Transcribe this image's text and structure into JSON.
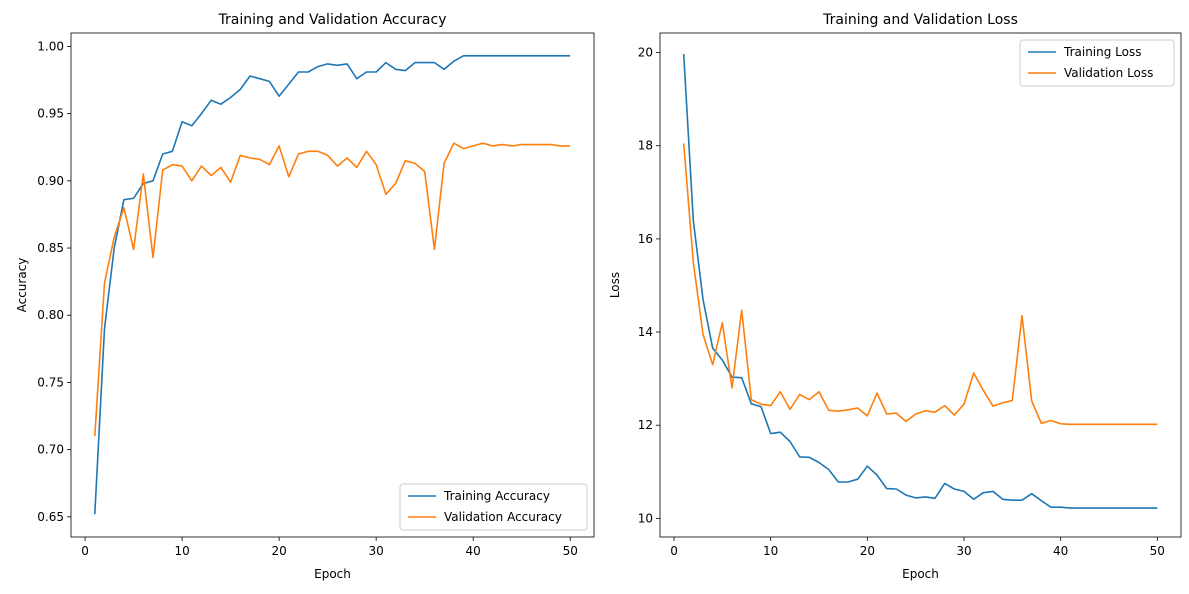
{
  "chart_data": [
    {
      "type": "line",
      "title": "Training and Validation Accuracy",
      "xlabel": "Epoch",
      "ylabel": "Accuracy",
      "xlim": [
        -1.45,
        52.45
      ],
      "ylim": [
        0.635,
        1.01
      ],
      "xticks": [
        0,
        10,
        20,
        30,
        40,
        50
      ],
      "yticks": [
        "0.65",
        "0.70",
        "0.75",
        "0.80",
        "0.85",
        "0.90",
        "0.95",
        "1.00"
      ],
      "legend": "lower right",
      "grid": false,
      "x": [
        1,
        2,
        3,
        4,
        5,
        6,
        7,
        8,
        9,
        10,
        11,
        12,
        13,
        14,
        15,
        16,
        17,
        18,
        19,
        20,
        21,
        22,
        23,
        24,
        25,
        26,
        27,
        28,
        29,
        30,
        31,
        32,
        33,
        34,
        35,
        36,
        37,
        38,
        39,
        40,
        41,
        42,
        43,
        44,
        45,
        46,
        47,
        48,
        49,
        50
      ],
      "series": [
        {
          "name": "Training Accuracy",
          "color": "#1f77b4",
          "values": [
            0.652,
            0.79,
            0.85,
            0.886,
            0.887,
            0.898,
            0.9,
            0.92,
            0.922,
            0.944,
            0.941,
            0.95,
            0.96,
            0.957,
            0.962,
            0.968,
            0.978,
            0.976,
            0.974,
            0.963,
            0.972,
            0.981,
            0.981,
            0.985,
            0.987,
            0.986,
            0.987,
            0.976,
            0.981,
            0.981,
            0.988,
            0.983,
            0.982,
            0.988,
            0.988,
            0.988,
            0.983,
            0.989,
            0.993,
            0.993,
            0.993,
            0.993,
            0.993,
            0.993,
            0.993,
            0.993,
            0.993,
            0.993,
            0.993,
            0.993
          ]
        },
        {
          "name": "Validation Accuracy",
          "color": "#ff7f0e",
          "values": [
            0.71,
            0.824,
            0.858,
            0.88,
            0.849,
            0.905,
            0.843,
            0.908,
            0.912,
            0.911,
            0.9,
            0.911,
            0.904,
            0.91,
            0.899,
            0.919,
            0.917,
            0.916,
            0.912,
            0.926,
            0.903,
            0.92,
            0.922,
            0.922,
            0.919,
            0.911,
            0.917,
            0.91,
            0.922,
            0.912,
            0.89,
            0.898,
            0.915,
            0.913,
            0.907,
            0.849,
            0.913,
            0.928,
            0.924,
            0.926,
            0.928,
            0.926,
            0.927,
            0.926,
            0.927,
            0.927,
            0.927,
            0.927,
            0.926,
            0.926
          ]
        }
      ]
    },
    {
      "type": "line",
      "title": "Training and Validation Loss",
      "xlabel": "Epoch",
      "ylabel": "Loss",
      "xlim": [
        -1.45,
        52.45
      ],
      "ylim": [
        9.6,
        20.42
      ],
      "xticks": [
        0,
        10,
        20,
        30,
        40,
        50
      ],
      "yticks": [
        "10",
        "12",
        "14",
        "16",
        "18",
        "20"
      ],
      "legend": "upper right",
      "grid": false,
      "x": [
        1,
        2,
        3,
        4,
        5,
        6,
        7,
        8,
        9,
        10,
        11,
        12,
        13,
        14,
        15,
        16,
        17,
        18,
        19,
        20,
        21,
        22,
        23,
        24,
        25,
        26,
        27,
        28,
        29,
        30,
        31,
        32,
        33,
        34,
        35,
        36,
        37,
        38,
        39,
        40,
        41,
        42,
        43,
        44,
        45,
        46,
        47,
        48,
        49,
        50
      ],
      "series": [
        {
          "name": "Training Loss",
          "color": "#1f77b4",
          "values": [
            19.97,
            16.4,
            14.7,
            13.65,
            13.4,
            13.03,
            13.02,
            12.46,
            12.4,
            11.82,
            11.85,
            11.65,
            11.32,
            11.31,
            11.2,
            11.05,
            10.78,
            10.78,
            10.84,
            11.12,
            10.93,
            10.64,
            10.63,
            10.5,
            10.44,
            10.46,
            10.43,
            10.75,
            10.63,
            10.58,
            10.41,
            10.55,
            10.58,
            10.41,
            10.39,
            10.39,
            10.53,
            10.38,
            10.24,
            10.24,
            10.22,
            10.22,
            10.22,
            10.22,
            10.22,
            10.22,
            10.22,
            10.22,
            10.22,
            10.22
          ]
        },
        {
          "name": "Validation Loss",
          "color": "#ff7f0e",
          "values": [
            18.05,
            15.5,
            13.95,
            13.3,
            14.2,
            12.8,
            14.47,
            12.55,
            12.45,
            12.42,
            12.72,
            12.34,
            12.66,
            12.55,
            12.72,
            12.32,
            12.3,
            12.33,
            12.37,
            12.2,
            12.69,
            12.24,
            12.26,
            12.08,
            12.24,
            12.31,
            12.28,
            12.42,
            12.22,
            12.45,
            13.12,
            12.75,
            12.41,
            12.48,
            12.53,
            14.35,
            12.52,
            12.04,
            12.1,
            12.03,
            12.02,
            12.02,
            12.02,
            12.02,
            12.02,
            12.02,
            12.02,
            12.02,
            12.02,
            12.02
          ]
        }
      ]
    }
  ]
}
